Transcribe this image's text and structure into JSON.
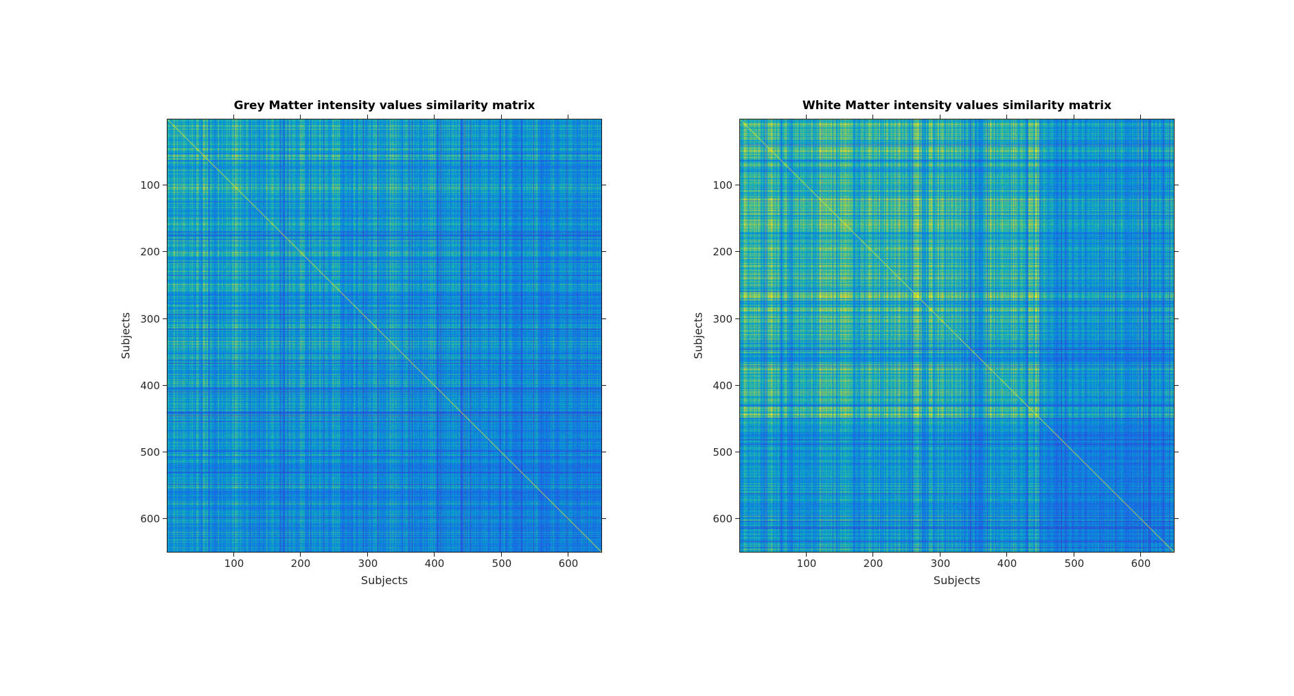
{
  "figure": {
    "background_color": "#ffffff"
  },
  "chart_data": [
    {
      "type": "heatmap",
      "panel": "left",
      "title": "Grey Matter intensity values similarity matrix",
      "xlabel": "Subjects",
      "ylabel": "Subjects",
      "x_ticks": [
        100,
        200,
        300,
        400,
        500,
        600
      ],
      "y_ticks": [
        100,
        200,
        300,
        400,
        500,
        600
      ],
      "x_range": [
        1,
        650
      ],
      "y_range": [
        1,
        650
      ],
      "n_subjects": 650,
      "grid": false,
      "legend": "none",
      "colorbar": "none",
      "colormap": "parula",
      "colormap_stops": {
        "positions": [
          0,
          0.12,
          0.25,
          0.38,
          0.5,
          0.62,
          0.75,
          0.88,
          1
        ],
        "colors": [
          "#352A87",
          "#393CCA",
          "#1B66E5",
          "#0D88DD",
          "#0BA8C2",
          "#37BC9B",
          "#80C861",
          "#D3C63C",
          "#F9FB0E"
        ]
      },
      "value_summary": {
        "description": "Symmetric subject-by-subject similarity matrix of grey-matter intensity values. Mostly mid-level similarity (cyan/blue plaid texture) with fine per-subject streaks; subjects above ~465 are slightly less similar (bluer rows/columns toward bottom-right); scattered low-similarity dark-blue subject lines and sparse high-similarity yellow-green speckles, denser toward the first ~360 subjects.",
        "approx_mean": 0.46,
        "approx_range": [
          0.18,
          1.0
        ]
      },
      "pattern": {
        "seed": 101,
        "base": 0.08,
        "gain": 1.05,
        "cell_noise": 0.05,
        "block": 8,
        "coarse": 0.07,
        "segments": [
          [
            0,
            160,
            0.64,
            0.2
          ],
          [
            160,
            360,
            0.61,
            0.19
          ],
          [
            360,
            465,
            0.58,
            0.18
          ],
          [
            465,
            650,
            0.5,
            0.15
          ]
        ],
        "dark_line_fraction": 0.06,
        "dark_line_depth": 0.28,
        "bright_line_fraction": 0.05,
        "bright_line_boost": 0.18,
        "diagonal_value": 0.98
      }
    },
    {
      "type": "heatmap",
      "panel": "right",
      "title": "White Matter intensity values similarity matrix",
      "xlabel": "Subjects",
      "ylabel": "Subjects",
      "x_ticks": [
        100,
        200,
        300,
        400,
        500,
        600
      ],
      "y_ticks": [
        100,
        200,
        300,
        400,
        500,
        600
      ],
      "x_range": [
        1,
        650
      ],
      "y_range": [
        1,
        650
      ],
      "n_subjects": 650,
      "grid": false,
      "legend": "none",
      "colorbar": "none",
      "colormap": "parula",
      "colormap_stops": {
        "positions": [
          0,
          0.12,
          0.25,
          0.38,
          0.5,
          0.62,
          0.75,
          0.88,
          1
        ],
        "colors": [
          "#352A87",
          "#393CCA",
          "#1B66E5",
          "#0D88DD",
          "#0BA8C2",
          "#37BC9B",
          "#80C861",
          "#D3C63C",
          "#F9FB0E"
        ]
      },
      "value_summary": {
        "description": "Symmetric subject-by-subject similarity matrix of white-matter intensity values. Higher contrast than grey matter: subjects up to ~450 show many high-similarity yellow streaks (strongest around subjects ~120-170); a low-similarity dark-blue band near subjects ~352-368; subjects above ~450 form a bluer low-similarity block (bottom/right).",
        "approx_mean": 0.5,
        "approx_range": [
          0.15,
          1.0
        ]
      },
      "pattern": {
        "seed": 202,
        "base": 0.08,
        "gain": 1.05,
        "cell_noise": 0.05,
        "block": 8,
        "coarse": 0.08,
        "segments": [
          [
            0,
            55,
            0.74,
            0.22
          ],
          [
            55,
            120,
            0.63,
            0.2
          ],
          [
            120,
            170,
            0.78,
            0.2
          ],
          [
            170,
            300,
            0.68,
            0.22
          ],
          [
            300,
            352,
            0.63,
            0.2
          ],
          [
            352,
            368,
            0.44,
            0.1
          ],
          [
            368,
            450,
            0.66,
            0.22
          ],
          [
            450,
            650,
            0.48,
            0.14
          ]
        ],
        "dark_line_fraction": 0.07,
        "dark_line_depth": 0.3,
        "bright_line_fraction": 0.06,
        "bright_line_boost": 0.18,
        "diagonal_value": 0.98
      }
    }
  ]
}
